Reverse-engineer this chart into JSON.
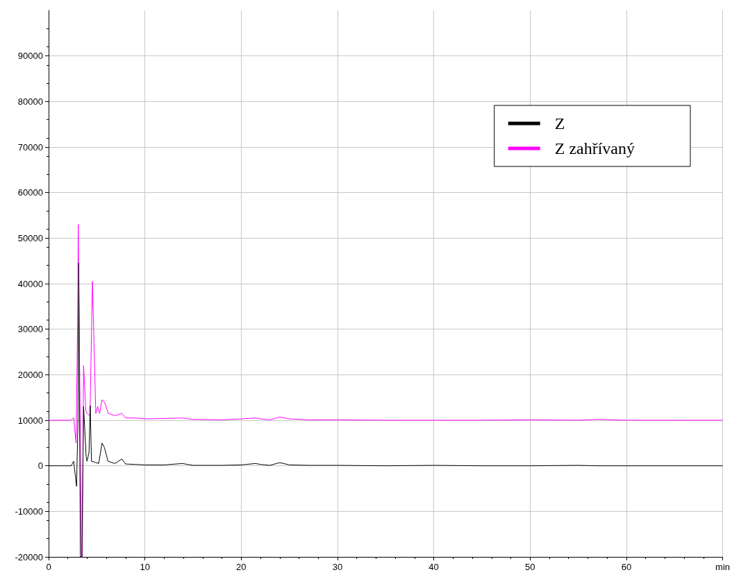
{
  "chart_data": {
    "type": "line",
    "xlim": [
      0,
      70
    ],
    "xticks": [
      0,
      10,
      20,
      30,
      40,
      50,
      60,
      {
        "value": 70,
        "label": "min"
      }
    ],
    "ylim": [
      -20000,
      100000
    ],
    "yticks": [
      -20000,
      -10000,
      0,
      10000,
      20000,
      30000,
      40000,
      50000,
      60000,
      70000,
      80000,
      90000
    ],
    "grid": true,
    "legend": "top right",
    "marker": "none",
    "line_style": "solid",
    "series": [
      {
        "name": "Z",
        "color": "#000000",
        "x": [
          0,
          2.35,
          2.6,
          2.9,
          3.05,
          3.13,
          3.3,
          3.45,
          3.63,
          3.9,
          3.99,
          4.2,
          4.32,
          4.45,
          4.8,
          5.2,
          5.55,
          5.8,
          6.17,
          6.9,
          7.6,
          8.0,
          9,
          10,
          12,
          13.9,
          15,
          18,
          20,
          21.5,
          22,
          23,
          24,
          25,
          27,
          30,
          35,
          40,
          45,
          50,
          55,
          57,
          60,
          65,
          70
        ],
        "values": [
          0,
          0,
          1000,
          -4500,
          10000,
          44500,
          -20000,
          -20000,
          13000,
          2000,
          1000,
          3000,
          13200,
          1000,
          800,
          500,
          5000,
          4000,
          1000,
          500,
          1500,
          400,
          300,
          200,
          200,
          500,
          100,
          100,
          200,
          500,
          300,
          100,
          700,
          200,
          100,
          100,
          0,
          100,
          0,
          0,
          100,
          0,
          0,
          0,
          0
        ]
      },
      {
        "name": "Z zahřívaný",
        "color": "#ff00ff",
        "x": [
          0,
          2.3,
          2.6,
          2.85,
          3.0,
          3.08,
          3.13,
          3.42,
          3.5,
          3.63,
          3.87,
          3.99,
          4.3,
          4.55,
          4.9,
          5.1,
          5.3,
          5.55,
          5.8,
          6.2,
          6.9,
          7.6,
          8.0,
          9,
          10,
          12,
          13.9,
          15,
          18,
          20,
          21.5,
          22,
          23,
          24,
          25,
          27,
          30,
          35,
          40,
          45,
          50,
          55,
          57,
          60,
          65,
          70
        ],
        "values": [
          10000,
          10000,
          10500,
          5000,
          30000,
          53000,
          40000,
          -20000,
          -20000,
          22000,
          12000,
          11500,
          11000,
          40500,
          11500,
          13000,
          11500,
          14500,
          14000,
          11500,
          11000,
          11500,
          10500,
          10500,
          10300,
          10400,
          10500,
          10200,
          10100,
          10300,
          10500,
          10300,
          10100,
          10700,
          10300,
          10100,
          10100,
          10000,
          10000,
          10000,
          10100,
          10000,
          10200,
          10000,
          10000,
          10000
        ]
      }
    ]
  }
}
